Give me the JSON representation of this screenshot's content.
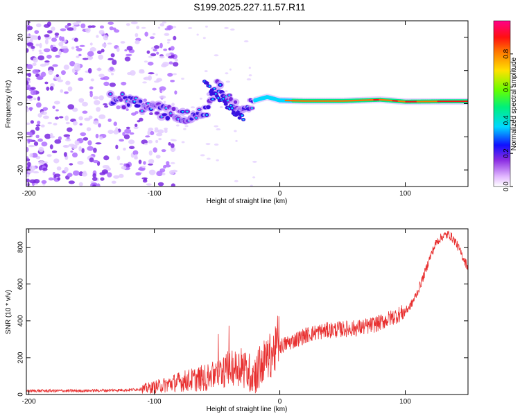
{
  "title": "S199.2025.227.11.57.R11",
  "chart_data": [
    {
      "type": "heatmap",
      "title": "S199.2025.227.11.57.R11",
      "xlabel": "Height of straight line (km)",
      "ylabel": "Frequency (Hz)",
      "xlim": [
        -202,
        150
      ],
      "ylim": [
        -25,
        25
      ],
      "xticks": [
        -200,
        -100,
        0,
        100
      ],
      "yticks": [
        -20,
        -10,
        0,
        10,
        20
      ],
      "tick_labels_x": [
        "-200",
        "-100",
        "0",
        "100"
      ],
      "tick_labels_y": [
        "-20",
        "-10",
        "0",
        "10",
        "20"
      ],
      "colorbar": {
        "label": "Normalized spectral amplitude",
        "range": [
          0,
          1
        ],
        "ticks": [
          0.0,
          0.2,
          0.4,
          0.6,
          0.8
        ],
        "tick_labels": [
          "0.0",
          "0.2",
          "0.4",
          "0.6",
          "0.8"
        ],
        "colormap": "rainbow (white to violet to blue to cyan to green to yellow to red to magenta)"
      },
      "ridge": {
        "x": [
          -130,
          -110,
          -90,
          -75,
          -60,
          -50,
          -40,
          -30,
          -20,
          -10,
          0,
          20,
          50,
          80,
          100,
          130,
          150
        ],
        "y": [
          1.5,
          -0.5,
          -2.5,
          -4,
          -3,
          5,
          1,
          -3,
          1,
          2,
          1,
          0.8,
          0.8,
          1.2,
          0.6,
          0.7,
          0.7
        ]
      }
    },
    {
      "type": "line",
      "xlabel": "Height of straight line (km)",
      "ylabel": "SNR (10 * v/v)",
      "xlim": [
        -202,
        150
      ],
      "ylim": [
        0,
        900
      ],
      "xticks": [
        -200,
        -100,
        0,
        100
      ],
      "yticks": [
        0,
        200,
        400,
        600,
        800
      ],
      "tick_labels_x": [
        "-200",
        "-100",
        "0",
        "100"
      ],
      "tick_labels_y": [
        "0",
        "200",
        "400",
        "600",
        "800"
      ],
      "color": "#e83030",
      "series": [
        {
          "name": "SNR",
          "x": [
            -202,
            -180,
            -160,
            -140,
            -120,
            -110,
            -100,
            -90,
            -80,
            -70,
            -60,
            -50,
            -40,
            -30,
            -25,
            -20,
            -15,
            -10,
            -5,
            0,
            10,
            20,
            30,
            40,
            50,
            60,
            70,
            80,
            90,
            100,
            105,
            110,
            115,
            120,
            125,
            130,
            135,
            140,
            145,
            150
          ],
          "y": [
            20,
            20,
            20,
            22,
            25,
            30,
            40,
            55,
            70,
            80,
            90,
            110,
            140,
            150,
            120,
            110,
            160,
            200,
            230,
            260,
            290,
            320,
            340,
            350,
            355,
            360,
            370,
            390,
            420,
            450,
            490,
            560,
            650,
            750,
            830,
            860,
            870,
            830,
            760,
            690
          ]
        }
      ]
    }
  ]
}
